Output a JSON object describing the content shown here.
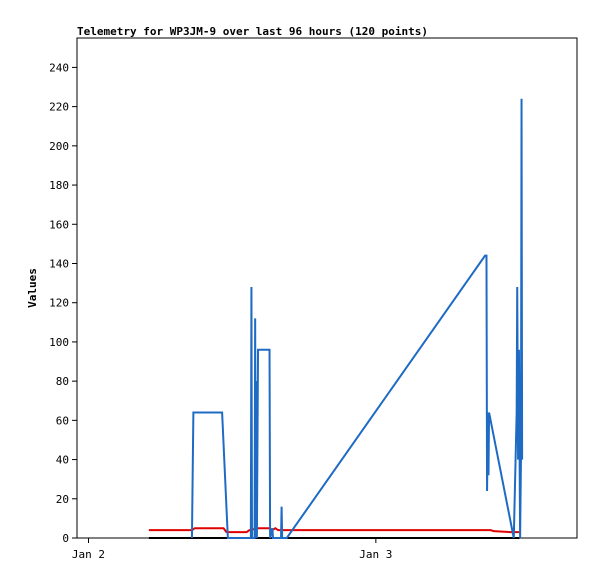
{
  "chart_data": {
    "type": "line",
    "title": "Telemetry for WP3JM-9 over last 96 hours (120 points)",
    "xlabel": "",
    "ylabel": "Values",
    "xlim": [
      -0.04,
      1.7
    ],
    "ylim": [
      0,
      255
    ],
    "x_ticks": [
      {
        "value": 0,
        "label": "Jan 2"
      },
      {
        "value": 1,
        "label": "Jan 3"
      }
    ],
    "y_ticks": [
      0,
      20,
      40,
      60,
      80,
      100,
      120,
      140,
      160,
      180,
      200,
      220,
      240
    ],
    "grid": false,
    "legend": "none",
    "series": [
      {
        "color": "#000000",
        "points": [
          [
            0.21,
            0
          ],
          [
            1.5,
            0
          ]
        ]
      },
      {
        "color": "#e00000",
        "points": [
          [
            0.21,
            4
          ],
          [
            0.36,
            4
          ],
          [
            0.37,
            5
          ],
          [
            0.47,
            5
          ],
          [
            0.48,
            3
          ],
          [
            0.55,
            3
          ],
          [
            0.56,
            4
          ],
          [
            0.59,
            5
          ],
          [
            0.63,
            5
          ],
          [
            0.64,
            4
          ],
          [
            0.65,
            5
          ],
          [
            0.66,
            4
          ],
          [
            1.4,
            4
          ],
          [
            1.41,
            3.5
          ],
          [
            1.47,
            3
          ],
          [
            1.5,
            3
          ]
        ]
      },
      {
        "color": "#1f6bc4",
        "points": [
          [
            0.36,
            0
          ],
          [
            0.365,
            64
          ],
          [
            0.465,
            64
          ],
          [
            0.485,
            0
          ],
          [
            0.565,
            0
          ],
          [
            0.567,
            128
          ],
          [
            0.569,
            0
          ],
          [
            0.578,
            0
          ],
          [
            0.58,
            112
          ],
          [
            0.582,
            0
          ],
          [
            0.584,
            80
          ],
          [
            0.586,
            0
          ],
          [
            0.59,
            96
          ],
          [
            0.63,
            96
          ],
          [
            0.632,
            0
          ],
          [
            0.64,
            5
          ],
          [
            0.642,
            0
          ],
          [
            0.67,
            0
          ],
          [
            0.672,
            16
          ],
          [
            0.674,
            0
          ],
          [
            0.69,
            0
          ],
          [
            1.38,
            144
          ],
          [
            1.385,
            144
          ],
          [
            1.387,
            24
          ],
          [
            1.39,
            64
          ],
          [
            1.392,
            32
          ],
          [
            1.394,
            64
          ],
          [
            1.48,
            0
          ],
          [
            1.49,
            64
          ],
          [
            1.492,
            128
          ],
          [
            1.495,
            40
          ],
          [
            1.498,
            96
          ],
          [
            1.502,
            0
          ],
          [
            1.505,
            40
          ],
          [
            1.507,
            224
          ],
          [
            1.509,
            40
          ]
        ]
      }
    ]
  }
}
